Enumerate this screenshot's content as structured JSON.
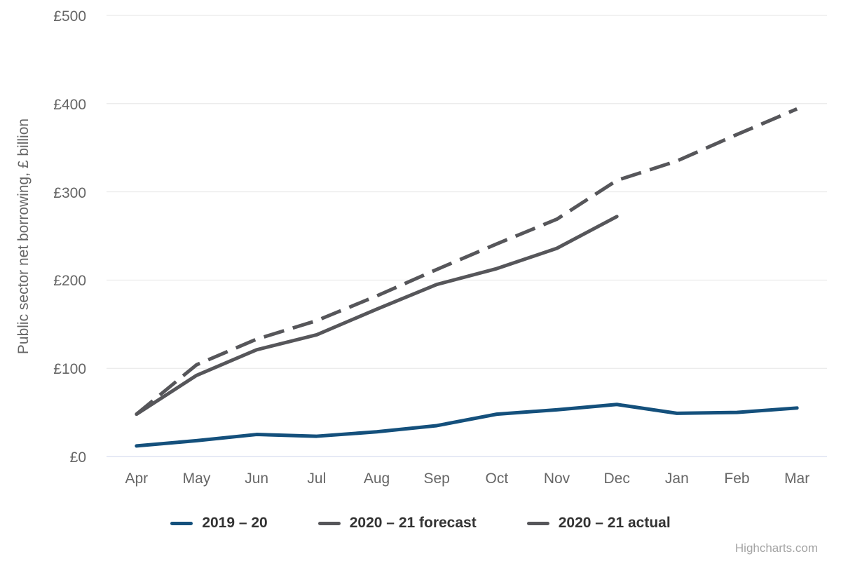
{
  "chart_data": {
    "type": "line",
    "title": "",
    "xlabel": "",
    "ylabel": "Public sector net borrowing, £ billion",
    "ylim": [
      0,
      500
    ],
    "grid": true,
    "legend_position": "bottom",
    "categories": [
      "Apr",
      "May",
      "Jun",
      "Jul",
      "Aug",
      "Sep",
      "Oct",
      "Nov",
      "Dec",
      "Jan",
      "Feb",
      "Mar"
    ],
    "y_ticks": [
      {
        "value": 0,
        "label": "£0"
      },
      {
        "value": 100,
        "label": "£100"
      },
      {
        "value": 200,
        "label": "£200"
      },
      {
        "value": 300,
        "label": "£300"
      },
      {
        "value": 400,
        "label": "£400"
      },
      {
        "value": 500,
        "label": "£500"
      }
    ],
    "series": [
      {
        "name": "2019 – 20",
        "color": "#14507c",
        "dash_style": "solid",
        "values": [
          12,
          18,
          25,
          23,
          28,
          35,
          48,
          53,
          59,
          49,
          50,
          55
        ]
      },
      {
        "name": "2020 – 21 forecast",
        "color": "#56565a",
        "dash_style": "dashed",
        "values": [
          48,
          104,
          133,
          154,
          182,
          212,
          241,
          269,
          313,
          335,
          365,
          394
        ]
      },
      {
        "name": "2020 – 21 actual",
        "color": "#56565a",
        "dash_style": "solid",
        "values": [
          48,
          92,
          121,
          138,
          167,
          195,
          213,
          236,
          272
        ]
      }
    ]
  },
  "colors": {
    "grid_line": "#e6e6e6",
    "axis_line": "#ccd6eb",
    "tick_label": "#666666",
    "axis_title": "#666666",
    "legend_text": "#333333",
    "credits_text": "#a4a4a4",
    "background": "#ffffff"
  },
  "credits": {
    "label": "Highcharts.com"
  }
}
